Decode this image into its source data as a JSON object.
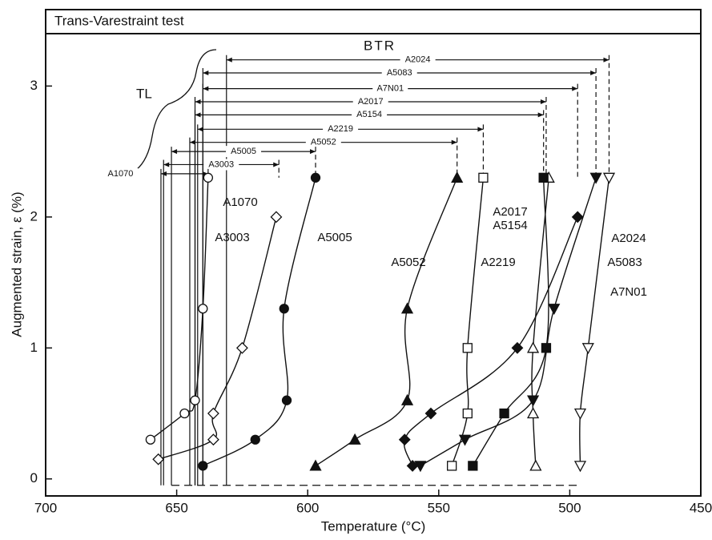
{
  "chart_data": {
    "type": "scatter",
    "title": "Trans-Varestraint test",
    "xlabel": "Temperature (°C)",
    "ylabel": "Augmented strain, ε (%)",
    "xlim": [
      700,
      450
    ],
    "ylim": [
      -0.13,
      3.4
    ],
    "xticks": [
      700,
      650,
      600,
      550,
      500,
      450
    ],
    "yticks": [
      0,
      1,
      2,
      3
    ],
    "annotations": [
      "BTR",
      "TL"
    ],
    "color": "#111111",
    "series": [
      {
        "name": "A1070",
        "marker": "circle",
        "filled": false,
        "x": [
          660,
          647,
          643,
          640,
          638
        ],
        "values": [
          0.3,
          0.5,
          0.6,
          1.3,
          2.3
        ]
      },
      {
        "name": "A3003",
        "marker": "diamond",
        "filled": false,
        "x": [
          657,
          636,
          636,
          625,
          612
        ],
        "values": [
          0.15,
          0.3,
          0.5,
          1.0,
          2.0
        ]
      },
      {
        "name": "A5005",
        "marker": "circle",
        "filled": true,
        "x": [
          640,
          620,
          608,
          609,
          597
        ],
        "values": [
          0.1,
          0.3,
          0.6,
          1.3,
          2.3
        ]
      },
      {
        "name": "A5052",
        "marker": "triangle",
        "filled": true,
        "x": [
          597,
          582,
          562,
          562,
          543
        ],
        "values": [
          0.1,
          0.3,
          0.6,
          1.3,
          2.3
        ]
      },
      {
        "name": "A2219",
        "marker": "square",
        "filled": false,
        "x": [
          545,
          539,
          539,
          533
        ],
        "values": [
          0.1,
          0.5,
          1.0,
          2.3
        ]
      },
      {
        "name": "A2017",
        "marker": "triangle",
        "filled": false,
        "x": [
          513,
          514,
          514,
          508
        ],
        "values": [
          0.1,
          0.5,
          1.0,
          2.3
        ]
      },
      {
        "name": "A5154",
        "marker": "square",
        "filled": true,
        "x": [
          537,
          525,
          509,
          510
        ],
        "values": [
          0.1,
          0.5,
          1.0,
          2.3
        ]
      },
      {
        "name": "A7N01",
        "marker": "diamond",
        "filled": true,
        "x": [
          560,
          563,
          553,
          520,
          497
        ],
        "values": [
          0.1,
          0.3,
          0.5,
          1.0,
          2.0
        ]
      },
      {
        "name": "A5083",
        "marker": "itriangle",
        "filled": true,
        "x": [
          557,
          540,
          514,
          506,
          490
        ],
        "values": [
          0.1,
          0.3,
          0.6,
          1.3,
          2.3
        ]
      },
      {
        "name": "A2024",
        "marker": "itriangle",
        "filled": false,
        "x": [
          496,
          496,
          493,
          485
        ],
        "values": [
          0.1,
          0.5,
          1.0,
          2.3
        ]
      }
    ],
    "btr_ranges": [
      {
        "name": "A2024",
        "from": 631,
        "to": 485,
        "strain": 3.2
      },
      {
        "name": "A5083",
        "from": 640,
        "to": 490,
        "strain": 3.1
      },
      {
        "name": "A7N01",
        "from": 640,
        "to": 497,
        "strain": 2.98
      },
      {
        "name": "A2017",
        "from": 643,
        "to": 509,
        "strain": 2.88
      },
      {
        "name": "A5154",
        "from": 643,
        "to": 510,
        "strain": 2.78
      },
      {
        "name": "A2219",
        "from": 642,
        "to": 533,
        "strain": 2.67
      },
      {
        "name": "A5052",
        "from": 645,
        "to": 543,
        "strain": 2.57
      },
      {
        "name": "A5005",
        "from": 652,
        "to": 597,
        "strain": 2.5
      },
      {
        "name": "A3003",
        "from": 655,
        "to": 611,
        "strain": 2.4
      },
      {
        "name": "A1070",
        "from": 656,
        "to": 638,
        "strain": 2.33
      }
    ]
  }
}
